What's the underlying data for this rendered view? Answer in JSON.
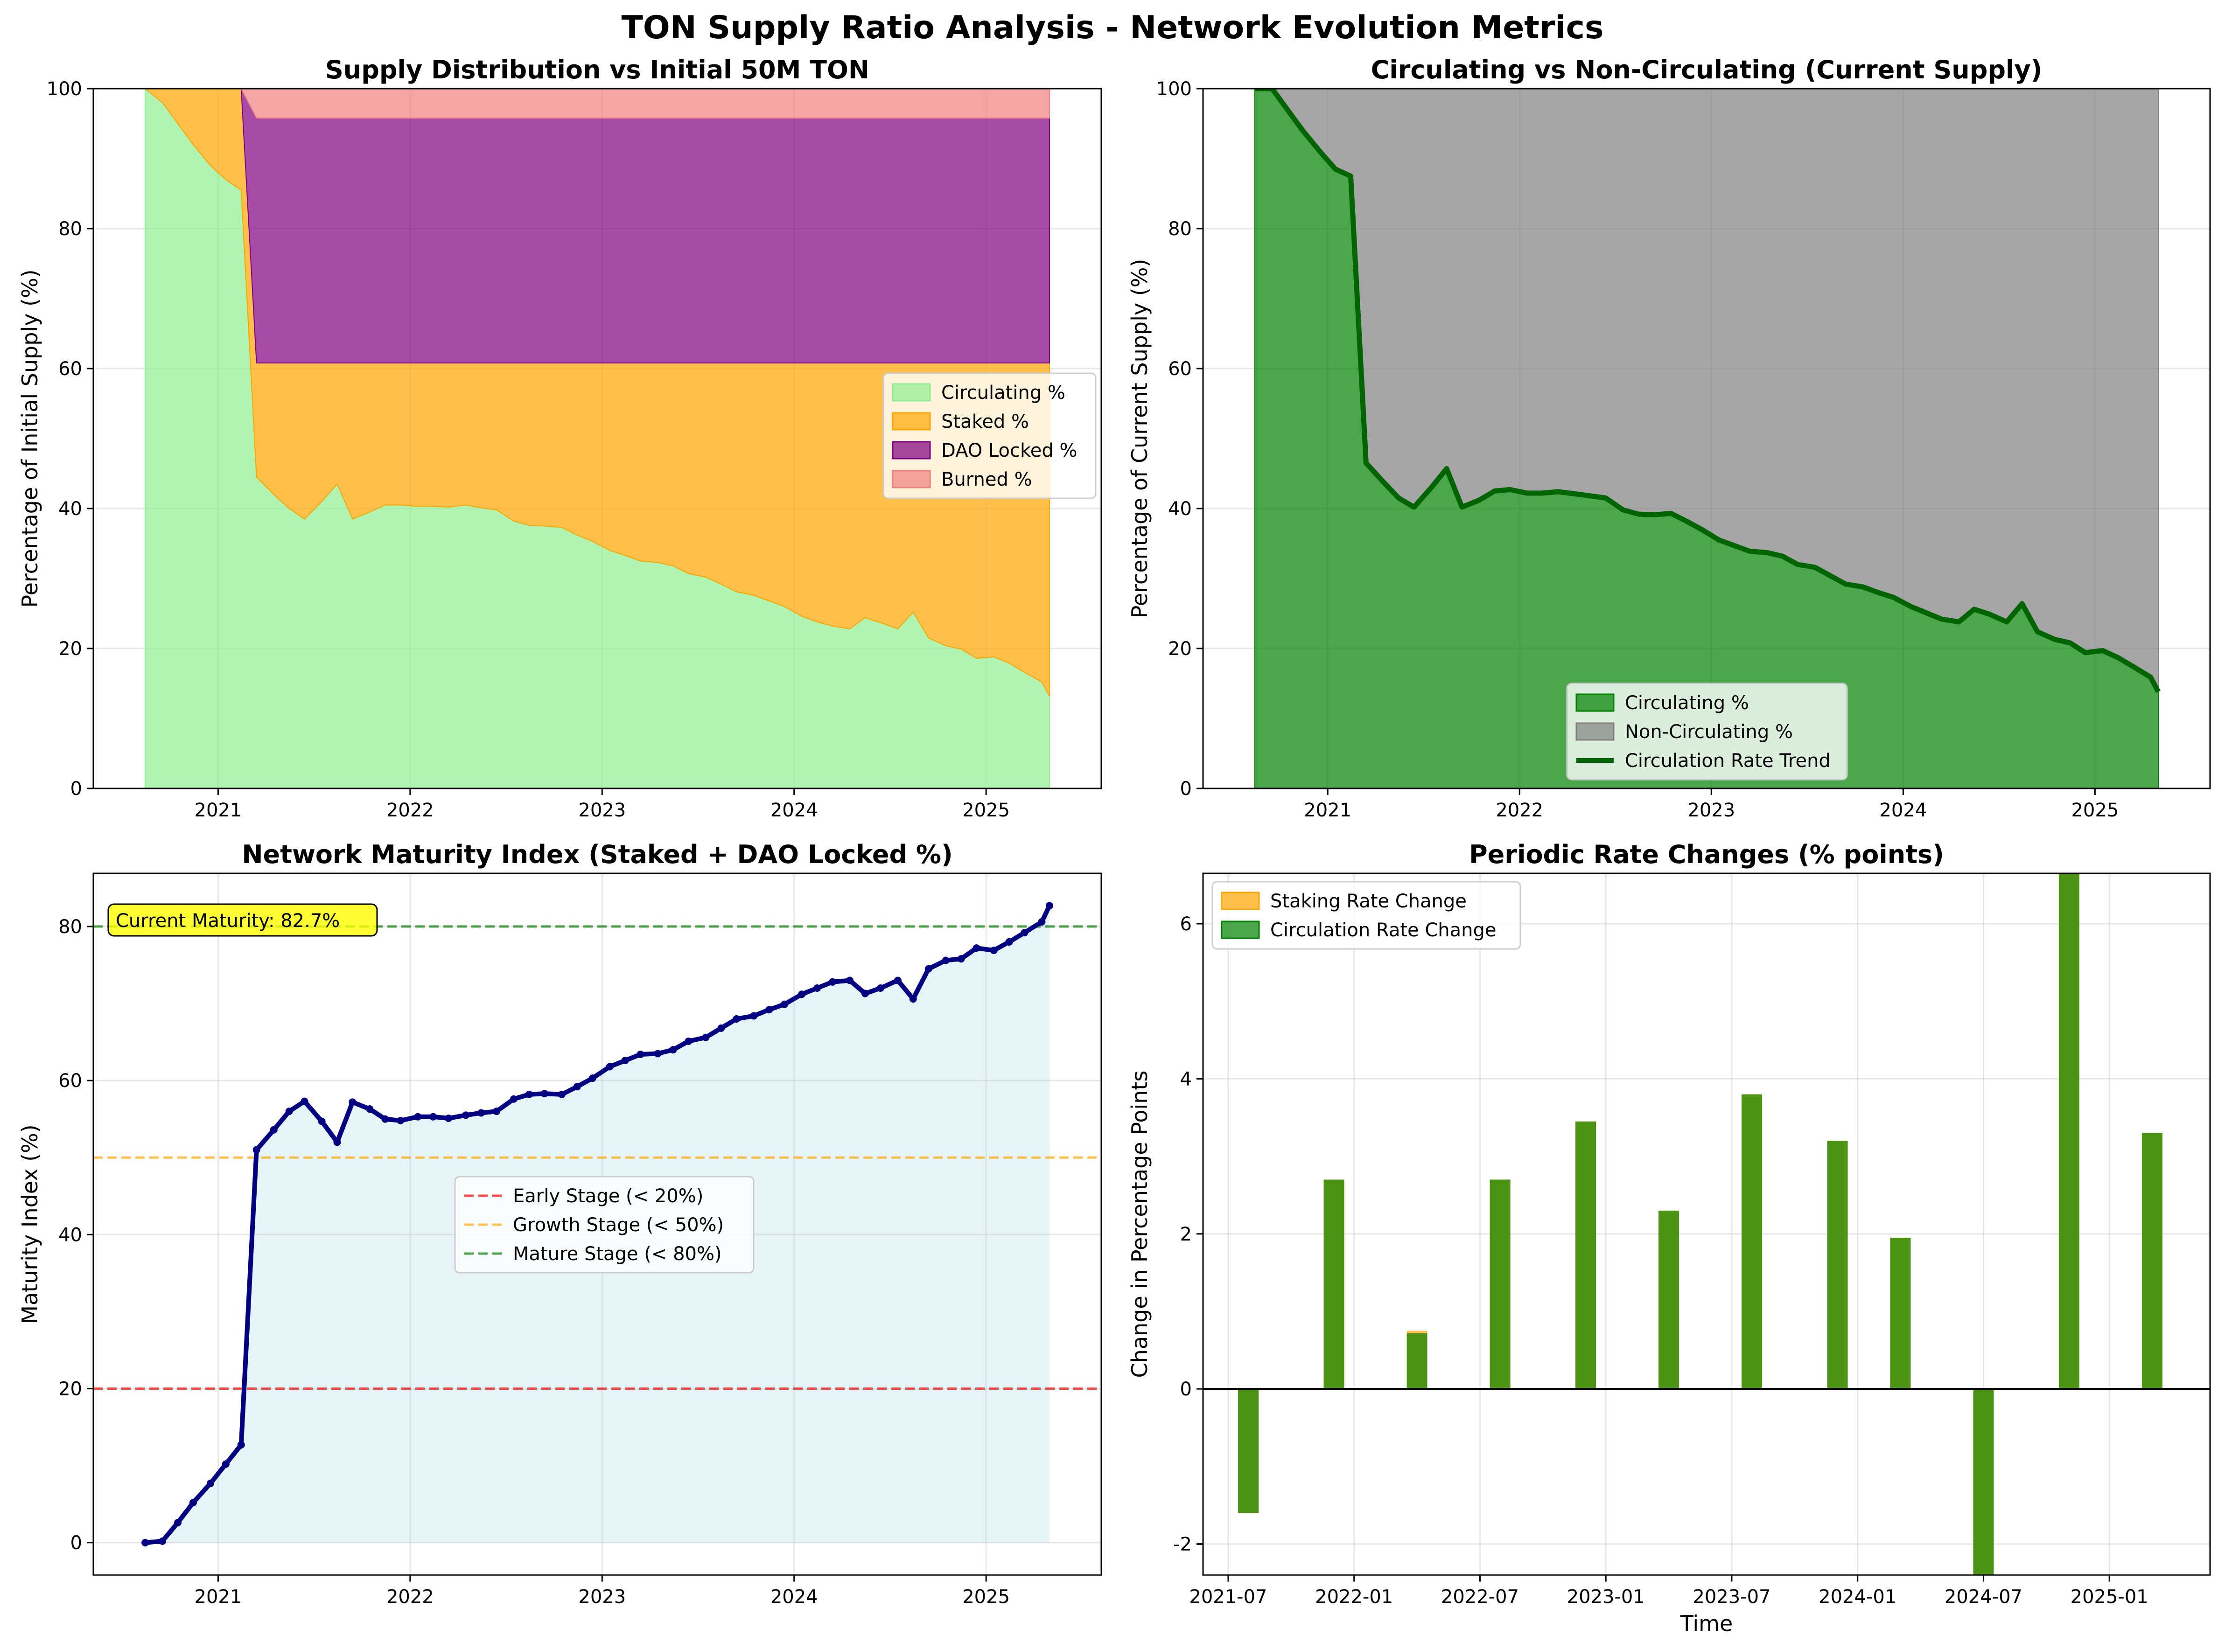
{
  "figure": {
    "suptitle": "TON Supply Ratio Analysis - Network Evolution Metrics"
  },
  "chart_data": [
    {
      "id": "supply_distribution",
      "type": "area",
      "title": "Supply Distribution vs Initial 50M TON",
      "xlabel": "",
      "ylabel": "Percentage of Initial Supply (%)",
      "xlim": [
        2020.35,
        2025.6
      ],
      "ylim": [
        0,
        100
      ],
      "xticks": [
        2021,
        2022,
        2023,
        2024,
        2025
      ],
      "xtick_labels": [
        "2021",
        "2022",
        "2023",
        "2024",
        "2025"
      ],
      "yticks": [
        0,
        20,
        40,
        60,
        80,
        100
      ],
      "ytick_labels": [
        "0",
        "20",
        "40",
        "60",
        "80",
        "100"
      ],
      "grid": true,
      "legend_position": "center-right",
      "stacked": true,
      "x": [
        2020.62,
        2020.71,
        2020.79,
        2020.87,
        2020.96,
        2021.04,
        2021.12,
        2021.2,
        2021.29,
        2021.37,
        2021.45,
        2021.54,
        2021.62,
        2021.7,
        2021.79,
        2021.87,
        2021.95,
        2022.04,
        2022.12,
        2022.2,
        2022.29,
        2022.37,
        2022.45,
        2022.54,
        2022.62,
        2022.7,
        2022.79,
        2022.87,
        2022.95,
        2023.04,
        2023.12,
        2023.2,
        2023.29,
        2023.37,
        2023.45,
        2023.54,
        2023.62,
        2023.7,
        2023.79,
        2023.87,
        2023.95,
        2024.04,
        2024.12,
        2024.2,
        2024.29,
        2024.37,
        2024.45,
        2024.54,
        2024.62,
        2024.7,
        2024.79,
        2024.87,
        2024.95,
        2025.04,
        2025.12,
        2025.2,
        2025.29,
        2025.33
      ],
      "series": [
        {
          "name": "Circulating %",
          "color": "#90ee90",
          "opacity": 0.7,
          "values": [
            100,
            98,
            95,
            92,
            89,
            87,
            85.5,
            44.5,
            42,
            40,
            38.5,
            41,
            43.5,
            38.5,
            39.5,
            40.5,
            40.5,
            40.3,
            40.3,
            40.2,
            40.5,
            40.1,
            39.8,
            38.2,
            37.6,
            37.5,
            37.3,
            36.2,
            35.3,
            34.0,
            33.3,
            32.5,
            32.3,
            31.8,
            30.7,
            30.2,
            29.2,
            28.1,
            27.6,
            26.8,
            26.0,
            24.6,
            23.8,
            23.2,
            22.8,
            24.4,
            23.7,
            22.8,
            25.2,
            21.5,
            20.4,
            19.9,
            18.6,
            18.8,
            17.9,
            16.6,
            15.2,
            13.2
          ]
        },
        {
          "name": "Staked %",
          "color": "#ffa500",
          "opacity": 0.7,
          "values": [
            0,
            2,
            5,
            8,
            11,
            13,
            14.5,
            16.3,
            18.8,
            20.8,
            22.3,
            19.8,
            17.3,
            22.3,
            21.3,
            20.3,
            20.3,
            20.5,
            20.5,
            20.6,
            20.3,
            20.7,
            21.0,
            22.6,
            23.2,
            23.3,
            23.5,
            24.6,
            25.5,
            26.8,
            27.5,
            28.3,
            28.5,
            29.0,
            30.1,
            30.6,
            31.6,
            32.7,
            33.2,
            34.0,
            34.8,
            36.2,
            37.0,
            37.6,
            38.0,
            36.4,
            37.1,
            38.0,
            35.6,
            39.3,
            40.4,
            40.9,
            42.2,
            42.0,
            42.9,
            44.2,
            45.6,
            47.6
          ]
        },
        {
          "name": "DAO Locked %",
          "color": "#800080",
          "opacity": 0.7,
          "values": [
            0,
            0,
            0,
            0,
            0,
            0,
            0,
            35,
            35,
            35,
            35,
            35,
            35,
            35,
            35,
            35,
            35,
            35,
            35,
            35,
            35,
            35,
            35,
            35,
            35,
            35,
            35,
            35,
            35,
            35,
            35,
            35,
            35,
            35,
            35,
            35,
            35,
            35,
            35,
            35,
            35,
            35,
            35,
            35,
            35,
            35,
            35,
            35,
            35,
            35,
            35,
            35,
            35,
            35,
            35,
            35,
            35,
            35
          ]
        },
        {
          "name": "Burned %",
          "color": "#f08080",
          "opacity": 0.7,
          "values": [
            0,
            0,
            0,
            0,
            0,
            0,
            0,
            4.2,
            4.2,
            4.2,
            4.2,
            4.2,
            4.2,
            4.2,
            4.2,
            4.2,
            4.2,
            4.2,
            4.2,
            4.2,
            4.2,
            4.2,
            4.2,
            4.2,
            4.2,
            4.2,
            4.2,
            4.2,
            4.2,
            4.2,
            4.2,
            4.2,
            4.2,
            4.2,
            4.2,
            4.2,
            4.2,
            4.2,
            4.2,
            4.2,
            4.2,
            4.2,
            4.2,
            4.2,
            4.2,
            4.2,
            4.2,
            4.2,
            4.2,
            4.2,
            4.2,
            4.2,
            4.2,
            4.2,
            4.2,
            4.2,
            4.2,
            4.2
          ]
        }
      ]
    },
    {
      "id": "circulating_vs_noncirculating",
      "type": "area",
      "title": "Circulating vs Non-Circulating (Current Supply)",
      "xlabel": "",
      "ylabel": "Percentage of Current Supply (%)",
      "xlim": [
        2020.35,
        2025.6
      ],
      "ylim": [
        0,
        100
      ],
      "xticks": [
        2021,
        2022,
        2023,
        2024,
        2025
      ],
      "xtick_labels": [
        "2021",
        "2022",
        "2023",
        "2024",
        "2025"
      ],
      "yticks": [
        0,
        20,
        40,
        60,
        80,
        100
      ],
      "ytick_labels": [
        "0",
        "20",
        "40",
        "60",
        "80",
        "100"
      ],
      "grid": true,
      "legend_position": "lower-center",
      "x": [
        2020.62,
        2020.71,
        2020.79,
        2020.87,
        2020.96,
        2021.04,
        2021.12,
        2021.2,
        2021.29,
        2021.37,
        2021.45,
        2021.54,
        2021.62,
        2021.7,
        2021.79,
        2021.87,
        2021.95,
        2022.04,
        2022.12,
        2022.2,
        2022.29,
        2022.37,
        2022.45,
        2022.54,
        2022.62,
        2022.7,
        2022.79,
        2022.87,
        2022.95,
        2023.04,
        2023.12,
        2023.2,
        2023.29,
        2023.37,
        2023.45,
        2023.54,
        2023.62,
        2023.7,
        2023.79,
        2023.87,
        2023.95,
        2024.04,
        2024.12,
        2024.2,
        2024.29,
        2024.37,
        2024.45,
        2024.54,
        2024.62,
        2024.7,
        2024.79,
        2024.87,
        2024.95,
        2025.04,
        2025.12,
        2025.2,
        2025.29,
        2025.33
      ],
      "series": [
        {
          "name": "Circulating %",
          "color": "#008000",
          "opacity": 0.7,
          "values": [
            100,
            100,
            97,
            94,
            91,
            88.5,
            87.5,
            46.5,
            43.8,
            41.5,
            40.2,
            43,
            45.7,
            40.2,
            41.2,
            42.5,
            42.7,
            42.2,
            42.2,
            42.4,
            42.1,
            41.8,
            41.5,
            39.8,
            39.2,
            39.1,
            39.3,
            38.2,
            37.0,
            35.5,
            34.7,
            33.9,
            33.7,
            33.2,
            32.0,
            31.6,
            30.4,
            29.2,
            28.8,
            28.0,
            27.3,
            26.0,
            25.1,
            24.2,
            23.8,
            25.6,
            24.9,
            23.8,
            26.4,
            22.4,
            21.3,
            20.8,
            19.4,
            19.7,
            18.7,
            17.4,
            15.9,
            13.8
          ]
        },
        {
          "name": "Non-Circulating %",
          "color": "#808080",
          "opacity": 0.7,
          "values": [
            0,
            0,
            3,
            6,
            9,
            11.5,
            12.5,
            53.5,
            56.2,
            58.5,
            59.8,
            57,
            54.3,
            59.8,
            58.8,
            57.5,
            57.3,
            57.8,
            57.8,
            57.6,
            57.9,
            58.2,
            58.5,
            60.2,
            60.8,
            60.9,
            60.7,
            61.8,
            63.0,
            64.5,
            65.3,
            66.1,
            66.3,
            66.8,
            68.0,
            68.4,
            69.6,
            70.8,
            71.2,
            72.0,
            72.7,
            74.0,
            74.9,
            75.8,
            76.2,
            74.4,
            75.1,
            76.2,
            73.6,
            77.6,
            78.7,
            79.2,
            80.6,
            80.3,
            81.3,
            82.6,
            84.1,
            86.2
          ]
        },
        {
          "name": "Circulation Rate Trend",
          "color": "#006400",
          "line": true
        }
      ]
    },
    {
      "id": "maturity_index",
      "type": "line",
      "title": "Network Maturity Index (Staked + DAO Locked %)",
      "xlabel": "",
      "ylabel": "Maturity Index (%)",
      "xlim": [
        2020.35,
        2025.6
      ],
      "ylim": [
        -4.2,
        86.9
      ],
      "xticks": [
        2021,
        2022,
        2023,
        2024,
        2025
      ],
      "xtick_labels": [
        "2021",
        "2022",
        "2023",
        "2024",
        "2025"
      ],
      "yticks": [
        0,
        20,
        40,
        60,
        80
      ],
      "ytick_labels": [
        "0",
        "20",
        "40",
        "60",
        "80"
      ],
      "grid": true,
      "legend_position": "center",
      "line_color": "#000080",
      "fill_color": "#add8e6",
      "annotation": "Current Maturity: 82.7%",
      "x": [
        2020.62,
        2020.71,
        2020.79,
        2020.87,
        2020.96,
        2021.04,
        2021.12,
        2021.2,
        2021.29,
        2021.37,
        2021.45,
        2021.54,
        2021.62,
        2021.7,
        2021.79,
        2021.87,
        2021.95,
        2022.04,
        2022.12,
        2022.2,
        2022.29,
        2022.37,
        2022.45,
        2022.54,
        2022.62,
        2022.7,
        2022.79,
        2022.87,
        2022.95,
        2023.04,
        2023.12,
        2023.2,
        2023.29,
        2023.37,
        2023.45,
        2023.54,
        2023.62,
        2023.7,
        2023.79,
        2023.87,
        2023.95,
        2024.04,
        2024.12,
        2024.2,
        2024.29,
        2024.37,
        2024.45,
        2024.54,
        2024.62,
        2024.7,
        2024.79,
        2024.87,
        2024.95,
        2025.04,
        2025.12,
        2025.2,
        2025.29,
        2025.33
      ],
      "values": [
        0,
        0.2,
        2.6,
        5.2,
        7.7,
        10.2,
        12.7,
        51,
        53.6,
        56,
        57.3,
        54.7,
        52,
        57.2,
        56.3,
        55.0,
        54.8,
        55.3,
        55.3,
        55.1,
        55.5,
        55.8,
        56.0,
        57.6,
        58.2,
        58.3,
        58.2,
        59.2,
        60.3,
        61.8,
        62.6,
        63.4,
        63.5,
        64.0,
        65.1,
        65.6,
        66.8,
        68.0,
        68.4,
        69.2,
        69.9,
        71.2,
        72.0,
        72.8,
        73.0,
        71.3,
        72.0,
        73.0,
        70.6,
        74.5,
        75.6,
        75.8,
        77.2,
        76.9,
        78.0,
        79.2,
        80.6,
        82.7
      ],
      "reference_lines": [
        {
          "name": "Early Stage (< 20%)",
          "value": 20,
          "color": "#ff0000"
        },
        {
          "name": "Growth Stage (< 50%)",
          "value": 50,
          "color": "#ffa500"
        },
        {
          "name": "Mature Stage (< 80%)",
          "value": 80,
          "color": "#008000"
        }
      ]
    },
    {
      "id": "periodic_rate_changes",
      "type": "bar",
      "title": "Periodic Rate Changes (% points)",
      "xlabel": "Time",
      "ylabel": "Change in Percentage Points",
      "xlim": [
        2021.4,
        2025.4
      ],
      "ylim": [
        -2.4,
        6.65
      ],
      "xticks": [
        2021.5,
        2022.0,
        2022.5,
        2023.0,
        2023.5,
        2024.0,
        2024.5,
        2025.0
      ],
      "xtick_labels": [
        "2021-07",
        "2022-01",
        "2022-07",
        "2023-01",
        "2023-07",
        "2024-01",
        "2024-07",
        "2025-01"
      ],
      "yticks": [
        -2,
        0,
        2,
        4,
        6
      ],
      "ytick_labels": [
        "-2",
        "0",
        "2",
        "4",
        "6"
      ],
      "grid": true,
      "legend_position": "upper-left",
      "categories": [
        2021.58,
        2021.92,
        2022.25,
        2022.58,
        2022.92,
        2023.25,
        2023.58,
        2023.92,
        2024.17,
        2024.5,
        2024.84,
        2025.17
      ],
      "series": [
        {
          "name": "Staking Rate Change",
          "color": "#ffa500",
          "opacity": 0.7,
          "values": [
            -1.6,
            2.7,
            0.75,
            2.7,
            3.45,
            2.3,
            3.8,
            3.2,
            1.95,
            -2.4,
            6.65,
            3.3
          ]
        },
        {
          "name": "Circulation Rate Change",
          "color": "#008000",
          "opacity": 0.7,
          "values": [
            -1.6,
            2.7,
            0.72,
            2.7,
            3.45,
            2.3,
            3.8,
            3.2,
            1.95,
            -2.4,
            6.65,
            3.3
          ]
        }
      ]
    }
  ]
}
